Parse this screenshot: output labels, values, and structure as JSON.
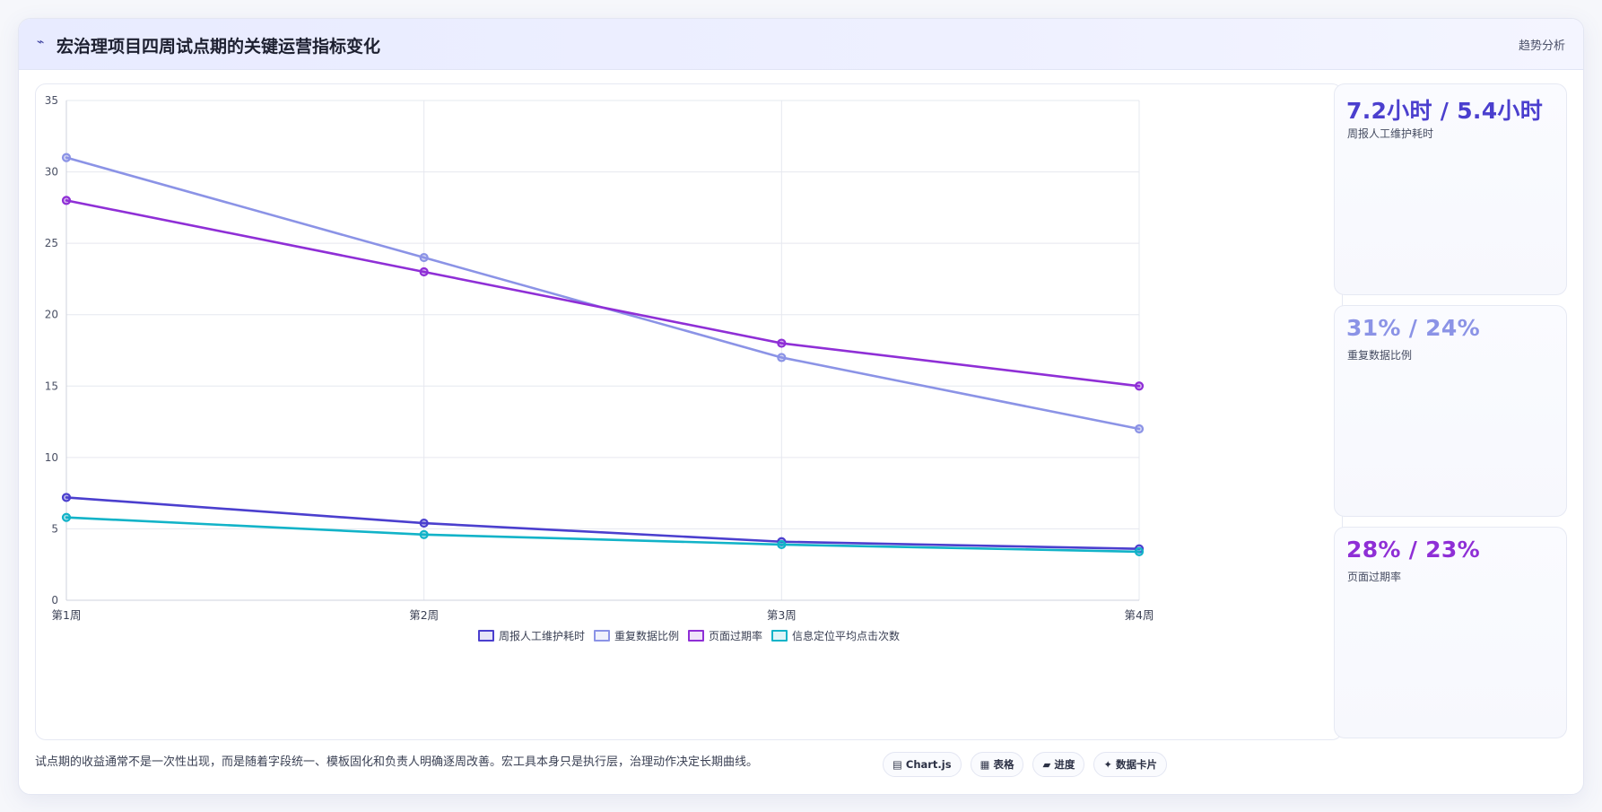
{
  "header": {
    "title": "宏治理项目四周试点期的关键运营指标变化",
    "tag": "趋势分析"
  },
  "colors": {
    "s1": "#4b3fce",
    "s2": "#8b93e6",
    "s3": "#8f2fd6",
    "s4": "#12b3c8"
  },
  "chart_data": {
    "type": "line",
    "categories": [
      "第1周",
      "第2周",
      "第3周",
      "第4周"
    ],
    "ylim": [
      0,
      35
    ],
    "yticks": [
      0,
      5,
      10,
      15,
      20,
      25,
      30,
      35
    ],
    "grid": true,
    "legend_position": "bottom",
    "series": [
      {
        "name": "周报人工维护耗时",
        "values": [
          7.2,
          5.4,
          4.1,
          3.6
        ]
      },
      {
        "name": "重复数据比例",
        "values": [
          31,
          24,
          17,
          12
        ]
      },
      {
        "name": "页面过期率",
        "values": [
          28,
          23,
          18,
          15
        ]
      },
      {
        "name": "信息定位平均点击次数",
        "values": [
          5.8,
          4.6,
          3.9,
          3.4
        ]
      }
    ]
  },
  "kpis": [
    {
      "value": "7.2小时 / 5.4小时",
      "label": "周报人工维护耗时",
      "color": "#4b3fce"
    },
    {
      "value": "31% / 24%",
      "label": "重复数据比例",
      "color": "#8b93e6"
    },
    {
      "value": "28% / 23%",
      "label": "页面过期率",
      "color": "#8f2fd6"
    }
  ],
  "footnote": "试点期的收益通常不是一次性出现，而是随着字段统一、模板固化和负责人明确逐周改善。宏工具本身只是执行层，治理动作决定长期曲线。",
  "chips": [
    {
      "icon": "▤",
      "icon_name": "chartjs-icon",
      "label": "Chart.js"
    },
    {
      "icon": "▦",
      "icon_name": "table-icon",
      "label": "表格"
    },
    {
      "icon": "▰",
      "icon_name": "progress-icon",
      "label": "进度"
    },
    {
      "icon": "✦",
      "icon_name": "sparkle-icon",
      "label": "数据卡片"
    }
  ]
}
